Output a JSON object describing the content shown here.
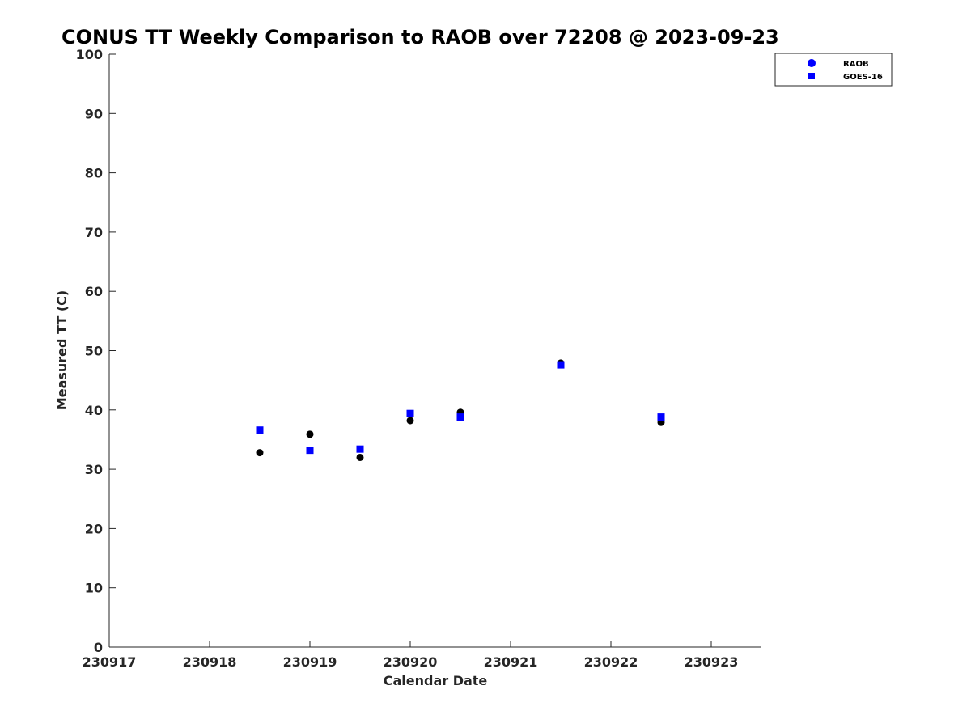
{
  "chart_data": {
    "type": "scatter",
    "title": "CONUS TT Weekly Comparison to RAOB over 72208 @ 2023-09-23",
    "xlabel": "Calendar Date",
    "ylabel": "Measured TT (C)",
    "xlim": [
      230917,
      230923.5
    ],
    "ylim": [
      0,
      100
    ],
    "xticks": [
      230917,
      230918,
      230919,
      230920,
      230921,
      230922,
      230923
    ],
    "xtick_labels": [
      "230917",
      "230918",
      "230919",
      "230920",
      "230921",
      "230922",
      "230923"
    ],
    "yticks": [
      0,
      10,
      20,
      30,
      40,
      50,
      60,
      70,
      80,
      90,
      100
    ],
    "ytick_labels": [
      "0",
      "10",
      "20",
      "30",
      "40",
      "50",
      "60",
      "70",
      "80",
      "90",
      "100"
    ],
    "grid": false,
    "legend_position": "top-right",
    "series": [
      {
        "name": "RAOB",
        "marker": "circle",
        "color": "#000000",
        "legend_color": "#0000ff",
        "x": [
          230918.5,
          230919,
          230919.5,
          230920,
          230920.5,
          230921.5,
          230922.5
        ],
        "y": [
          32.8,
          35.9,
          32.0,
          38.2,
          39.6,
          47.9,
          37.9
        ]
      },
      {
        "name": "GOES-16",
        "marker": "square",
        "color": "#0000ff",
        "legend_color": "#0000ff",
        "x": [
          230918.5,
          230919,
          230919.5,
          230920,
          230920.5,
          230921.5,
          230922.5
        ],
        "y": [
          36.6,
          33.2,
          33.4,
          39.4,
          38.8,
          47.6,
          38.8
        ]
      }
    ]
  }
}
